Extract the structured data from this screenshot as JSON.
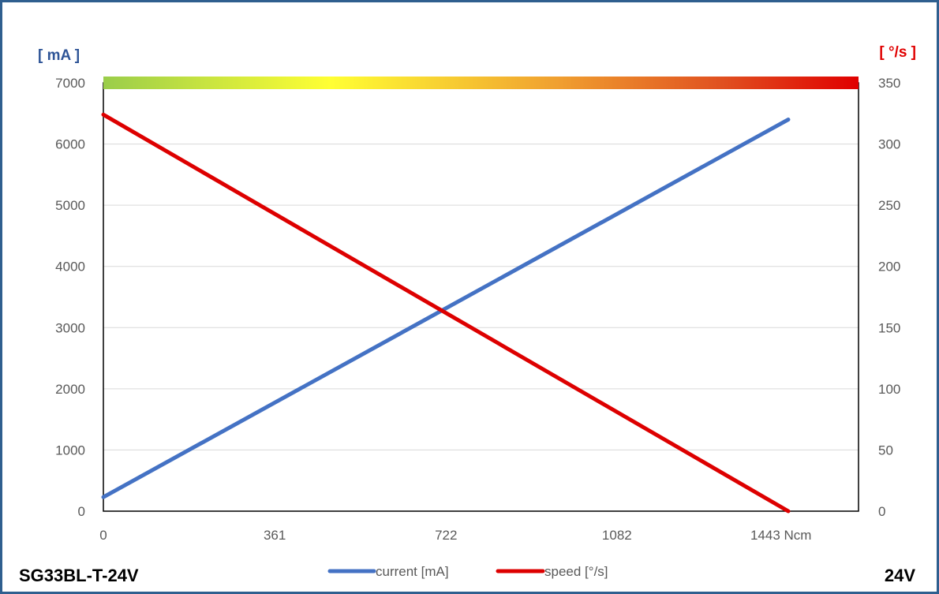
{
  "chart_data": {
    "type": "line",
    "x": [
      0,
      1443
    ],
    "x_ticks": [
      "0",
      "361",
      "722",
      "1082",
      "1443 Ncm"
    ],
    "xlim": [
      0,
      1591
    ],
    "y_left_unit": "[ mA ]",
    "y_left_ticks": [
      "0",
      "1000",
      "2000",
      "3000",
      "4000",
      "5000",
      "6000",
      "7000"
    ],
    "y_left_lim": [
      0,
      7000
    ],
    "y_right_unit": "[ °/s ]",
    "y_right_ticks": [
      "0",
      "50",
      "100",
      "150",
      "200",
      "250",
      "300",
      "350"
    ],
    "y_right_lim": [
      0,
      350
    ],
    "grid": true,
    "legend_position": "bottom",
    "series": [
      {
        "name": "current [mA]",
        "axis": "left",
        "color": "#4472c4",
        "x": [
          0,
          1443
        ],
        "values": [
          230,
          6400
        ]
      },
      {
        "name": "speed [°/s]",
        "axis": "right",
        "color": "#dd0000",
        "x": [
          0,
          1443
        ],
        "values": [
          324,
          0
        ]
      }
    ],
    "gradient_band_colors": [
      "#9acd4a",
      "#ffff33",
      "#f0a030",
      "#e05020",
      "#e00000"
    ]
  },
  "model_label": "SG33BL-T-24V",
  "voltage_label": "24V"
}
